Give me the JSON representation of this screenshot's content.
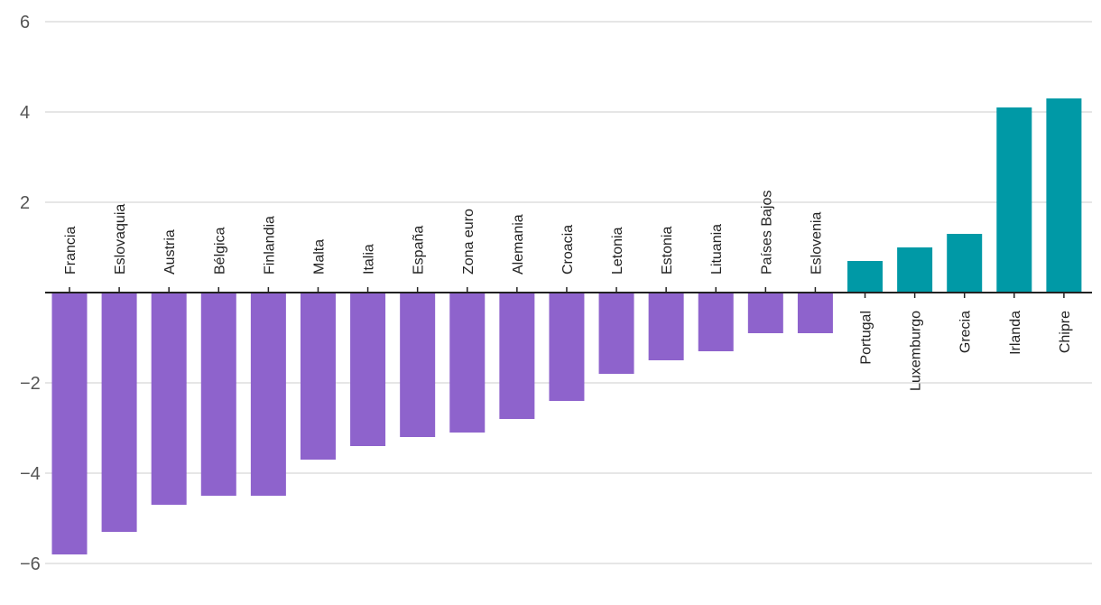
{
  "chart_data": {
    "type": "bar",
    "title": "",
    "xlabel": "",
    "ylabel": "",
    "ylim": [
      -6,
      6
    ],
    "yticks": [
      6,
      4,
      2,
      -2,
      -4,
      -6
    ],
    "ytick_labels": [
      "6",
      "4",
      "2",
      "−2",
      "−4",
      "−6"
    ],
    "grid": true,
    "legend": "none",
    "categories": [
      "Francia",
      "Eslovaquia",
      "Austria",
      "Bélgica",
      "Finlandia",
      "Malta",
      "Italia",
      "España",
      "Zona euro",
      "Alemania",
      "Croacia",
      "Letonia",
      "Estonia",
      "Lituania",
      "Países Bajos",
      "Eslovenia",
      "Portugal",
      "Luxemburgo",
      "Grecia",
      "Irlanda",
      "Chipre"
    ],
    "values": [
      -5.8,
      -5.3,
      -4.7,
      -4.5,
      -4.5,
      -3.7,
      -3.4,
      -3.2,
      -3.1,
      -2.8,
      -2.4,
      -1.8,
      -1.5,
      -1.3,
      -0.9,
      -0.9,
      0.7,
      1.0,
      1.3,
      4.1,
      4.3
    ],
    "colors": {
      "negative": "#8e63cc",
      "positive": "#0099a6"
    }
  }
}
